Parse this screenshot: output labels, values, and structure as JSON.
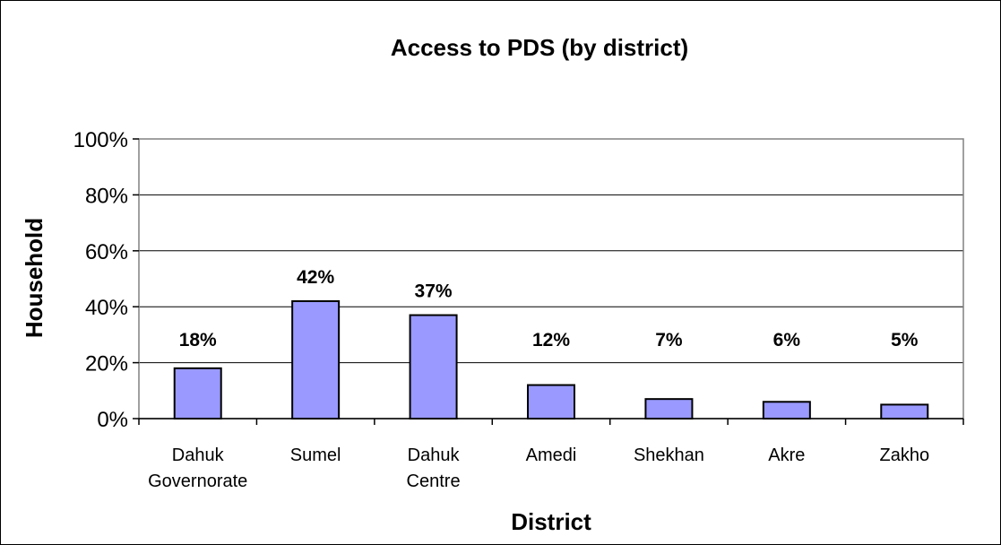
{
  "chart_data": {
    "type": "bar",
    "title": "Access to PDS (by district)",
    "xlabel": "District",
    "ylabel": "Household",
    "categories": [
      [
        "Dahuk",
        "Governorate"
      ],
      [
        "Sumel"
      ],
      [
        "Dahuk",
        "Centre"
      ],
      [
        "Amedi"
      ],
      [
        "Shekhan"
      ],
      [
        "Akre"
      ],
      [
        "Zakho"
      ]
    ],
    "values": [
      18,
      42,
      37,
      12,
      7,
      6,
      5
    ],
    "value_labels": [
      "18%",
      "42%",
      "37%",
      "12%",
      "7%",
      "6%",
      "5%"
    ],
    "ylim": [
      0,
      100
    ],
    "yticks": [
      0,
      20,
      40,
      60,
      80,
      100
    ],
    "ytick_labels": [
      "0%",
      "20%",
      "40%",
      "60%",
      "80%",
      "100%"
    ],
    "grid": true,
    "legend": "none",
    "colors": {
      "bar_fill": "#9999ff",
      "bar_stroke": "#000000",
      "grid": "#000000"
    }
  }
}
